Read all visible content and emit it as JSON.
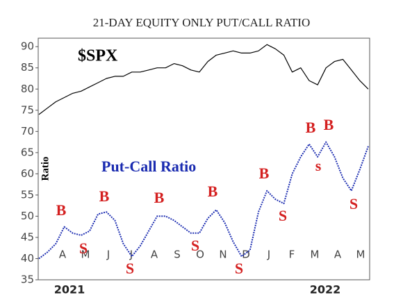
{
  "chart_data": {
    "type": "line",
    "title": "21-DAY EQUITY ONLY PUT/CALL RATIO",
    "y_label": "Ratio",
    "months": [
      "A",
      "M",
      "J",
      "J",
      "A",
      "S",
      "O",
      "N",
      "D",
      "J",
      "F",
      "M",
      "A",
      "M"
    ],
    "years": [
      "2021",
      "2022"
    ],
    "ylim": [
      35,
      92
    ],
    "yticks": [
      35,
      40,
      45,
      50,
      55,
      60,
      65,
      70,
      75,
      80,
      85,
      90
    ],
    "series": [
      {
        "name": "$SPX",
        "color": "#000000",
        "style": "solid",
        "values": [
          74,
          75.5,
          77,
          78,
          79,
          79.5,
          80.5,
          81.5,
          82.5,
          83,
          83,
          84,
          84,
          84.5,
          85,
          85,
          86,
          85.5,
          84.5,
          84,
          86.5,
          88,
          88.5,
          89,
          88.5,
          88.5,
          89,
          90.5,
          89.5,
          88,
          84,
          85,
          82,
          81,
          85,
          86.5,
          87,
          84.5,
          82,
          80
        ]
      },
      {
        "name": "Put-Call Ratio",
        "color": "#1a2bb0",
        "style": "dotted",
        "values": [
          40,
          41.5,
          43.5,
          47.5,
          46,
          45.5,
          46.5,
          50.5,
          51,
          49,
          43.5,
          40.5,
          43,
          46.5,
          50,
          50,
          49,
          47.5,
          46,
          46,
          49.5,
          51.5,
          48.5,
          44,
          40.5,
          42,
          51,
          56,
          54,
          53,
          60,
          64,
          67,
          64,
          67.5,
          64,
          59,
          56,
          61,
          66.5
        ]
      }
    ],
    "annotations": [
      "B",
      "S",
      "B",
      "S",
      "B",
      "S",
      "B",
      "S",
      "B",
      "S",
      "B",
      "s",
      "B",
      "S"
    ]
  }
}
